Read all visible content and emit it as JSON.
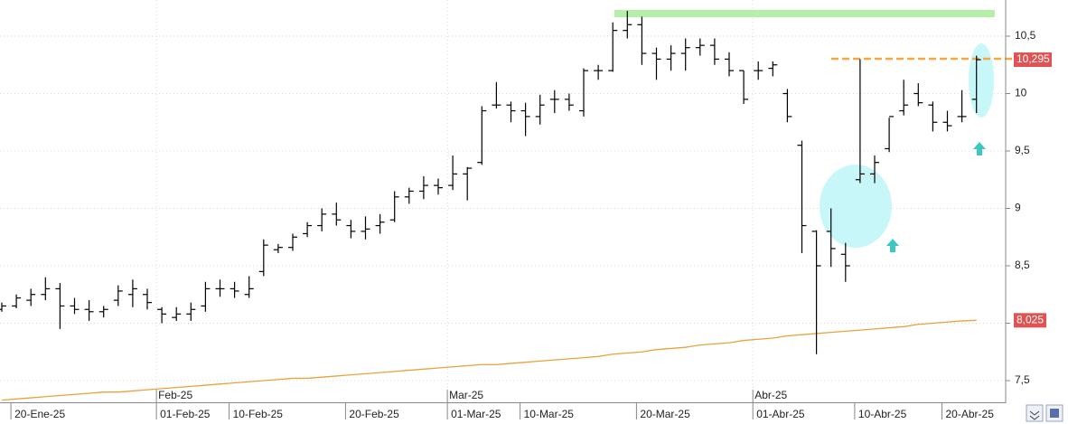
{
  "chart_data": {
    "type": "ohlc",
    "categories": [
      null,
      "20-Ene-25",
      null,
      null,
      null,
      null,
      null,
      null,
      null,
      null,
      null,
      "01-Feb-25",
      null,
      null,
      null,
      null,
      "10-Feb-25",
      null,
      null,
      null,
      null,
      null,
      null,
      null,
      "20-Feb-25",
      null,
      null,
      null,
      null,
      null,
      null,
      "01-Mar-25",
      null,
      null,
      null,
      null,
      "10-Mar-25",
      null,
      null,
      null,
      null,
      null,
      null,
      null,
      "20-Mar-25",
      null,
      null,
      null,
      null,
      null,
      null,
      null,
      "01-Abr-25",
      null,
      null,
      null,
      null,
      null,
      null,
      "10-Abr-25",
      null,
      null,
      null,
      null,
      null,
      "20-Abr-25",
      null,
      null
    ],
    "month_categories": [
      null,
      null,
      null,
      null,
      null,
      null,
      null,
      null,
      null,
      null,
      null,
      "Feb-25",
      null,
      null,
      null,
      null,
      null,
      null,
      null,
      null,
      null,
      null,
      null,
      null,
      null,
      null,
      null,
      null,
      null,
      null,
      null,
      "Mar-25",
      null,
      null,
      null,
      null,
      null,
      null,
      null,
      null,
      null,
      null,
      null,
      null,
      null,
      null,
      null,
      null,
      null,
      null,
      null,
      null,
      "Abr-25",
      null,
      null,
      null,
      null,
      null,
      null,
      null,
      null,
      null,
      null,
      null,
      null,
      null,
      null,
      null
    ],
    "ohlc": {
      "color": "#000000",
      "open": [
        8.12,
        8.15,
        8.2,
        8.25,
        8.3,
        8.15,
        8.12,
        8.1,
        8.2,
        8.25,
        8.25,
        8.12,
        8.05,
        8.08,
        8.15,
        8.3,
        8.3,
        8.25,
        8.45,
        8.64,
        8.66,
        8.78,
        8.85,
        8.95,
        8.85,
        8.8,
        8.85,
        8.9,
        9.1,
        9.15,
        9.2,
        9.2,
        9.3,
        9.4,
        9.9,
        9.9,
        9.85,
        9.8,
        9.95,
        9.95,
        9.85,
        10.2,
        10.2,
        10.55,
        10.6,
        10.35,
        10.3,
        10.35,
        10.4,
        10.42,
        10.3,
        10.2,
        10.2,
        10.22,
        10.0,
        9.55,
        8.8,
        8.8,
        8.6,
        9.25,
        9.3,
        9.52,
        9.85,
        10.0,
        9.9,
        9.75,
        9.8,
        9.95
      ],
      "high": [
        8.18,
        8.25,
        8.3,
        8.4,
        8.35,
        8.22,
        8.2,
        8.15,
        8.33,
        8.38,
        8.3,
        8.14,
        8.14,
        8.18,
        8.36,
        8.38,
        8.36,
        8.41,
        8.73,
        8.69,
        8.78,
        8.88,
        9.0,
        9.05,
        8.9,
        8.93,
        8.95,
        9.15,
        9.18,
        9.28,
        9.26,
        9.46,
        9.36,
        9.89,
        10.1,
        9.93,
        9.92,
        9.99,
        10.03,
        10.0,
        10.22,
        10.25,
        10.62,
        10.72,
        10.67,
        10.4,
        10.42,
        10.48,
        10.48,
        10.48,
        10.36,
        10.2,
        10.28,
        10.28,
        10.04,
        9.59,
        8.81,
        9.0,
        8.7,
        10.3,
        9.46,
        9.79,
        10.12,
        10.09,
        9.93,
        9.85,
        10.03,
        10.33
      ],
      "low": [
        8.1,
        8.13,
        8.15,
        8.2,
        7.95,
        8.08,
        8.02,
        8.05,
        8.15,
        8.14,
        8.12,
        8.0,
        8.02,
        8.02,
        8.1,
        8.23,
        8.22,
        8.22,
        8.41,
        8.61,
        8.63,
        8.75,
        8.8,
        8.85,
        8.74,
        8.73,
        8.78,
        8.88,
        9.04,
        9.08,
        9.12,
        9.16,
        9.07,
        9.38,
        9.87,
        9.75,
        9.63,
        9.73,
        9.83,
        9.85,
        9.8,
        10.12,
        10.19,
        10.48,
        10.25,
        10.12,
        10.2,
        10.2,
        10.33,
        10.25,
        10.15,
        9.91,
        10.12,
        10.15,
        9.75,
        8.61,
        7.73,
        8.49,
        8.36,
        9.22,
        9.22,
        9.49,
        9.81,
        9.89,
        9.67,
        9.67,
        9.75,
        9.83
      ],
      "close": [
        8.15,
        8.22,
        8.25,
        8.3,
        8.15,
        8.12,
        8.1,
        8.12,
        8.28,
        8.3,
        8.18,
        8.08,
        8.08,
        8.12,
        8.3,
        8.3,
        8.28,
        8.3,
        8.68,
        8.66,
        8.75,
        8.85,
        8.95,
        8.9,
        8.8,
        8.82,
        8.88,
        9.1,
        9.15,
        9.2,
        9.18,
        9.3,
        9.35,
        9.85,
        9.9,
        9.85,
        9.8,
        9.9,
        9.95,
        9.9,
        10.2,
        10.2,
        10.55,
        10.6,
        10.35,
        10.3,
        10.35,
        10.4,
        10.42,
        10.3,
        10.2,
        9.95,
        10.2,
        10.25,
        9.8,
        8.85,
        8.5,
        8.65,
        8.5,
        9.3,
        9.4,
        9.8,
        9.9,
        9.92,
        9.75,
        9.72,
        9.8,
        10.295
      ],
      "close_labels": [
        null,
        null,
        null,
        null,
        null,
        null,
        null,
        null,
        null,
        null,
        null,
        null,
        null,
        null,
        null,
        null,
        null,
        null,
        null,
        null,
        null,
        null,
        null,
        null,
        null,
        null,
        null,
        null,
        null,
        null,
        null,
        null,
        null,
        null,
        null,
        null,
        null,
        null,
        null,
        null,
        null,
        null,
        null,
        null,
        null,
        null,
        null,
        null,
        null,
        null,
        null,
        null,
        null,
        null,
        null,
        null,
        null,
        null,
        null,
        null,
        null,
        null,
        null,
        null,
        null,
        null,
        null,
        "10,295"
      ]
    },
    "lines": [
      {
        "color": "#e8a33c",
        "values": [
          7.33,
          7.34,
          7.35,
          7.36,
          7.37,
          7.38,
          7.39,
          7.4,
          7.4,
          7.41,
          7.42,
          7.43,
          7.44,
          7.45,
          7.46,
          7.47,
          7.48,
          7.49,
          7.5,
          7.51,
          7.52,
          7.52,
          7.53,
          7.54,
          7.55,
          7.56,
          7.57,
          7.58,
          7.59,
          7.6,
          7.61,
          7.62,
          7.63,
          7.64,
          7.64,
          7.65,
          7.66,
          7.67,
          7.68,
          7.69,
          7.7,
          7.71,
          7.73,
          7.74,
          7.75,
          7.77,
          7.78,
          7.79,
          7.81,
          7.82,
          7.83,
          7.85,
          7.86,
          7.87,
          7.89,
          7.9,
          7.91,
          7.92,
          7.93,
          7.94,
          7.95,
          7.96,
          7.97,
          7.99,
          8.0,
          8.01,
          8.02,
          8.025
        ],
        "value_labels": [
          null,
          null,
          null,
          null,
          null,
          null,
          null,
          null,
          null,
          null,
          null,
          null,
          null,
          null,
          null,
          null,
          null,
          null,
          null,
          null,
          null,
          null,
          null,
          null,
          null,
          null,
          null,
          null,
          null,
          null,
          null,
          null,
          null,
          null,
          null,
          null,
          null,
          null,
          null,
          null,
          null,
          null,
          null,
          null,
          null,
          null,
          null,
          null,
          null,
          null,
          null,
          null,
          null,
          null,
          null,
          null,
          null,
          null,
          null,
          null,
          null,
          null,
          null,
          null,
          null,
          null,
          null,
          "8,025"
        ]
      }
    ],
    "ylim": [
      7.311,
      10.815
    ],
    "yticks": [
      {
        "value": 7.5,
        "label": "7,5"
      },
      8,
      {
        "value": 8.5,
        "label": "8,5"
      },
      9,
      {
        "value": 9.5,
        "label": "9,5"
      },
      10,
      {
        "value": 10.5,
        "label": "10,5"
      }
    ],
    "grid": true
  }
}
